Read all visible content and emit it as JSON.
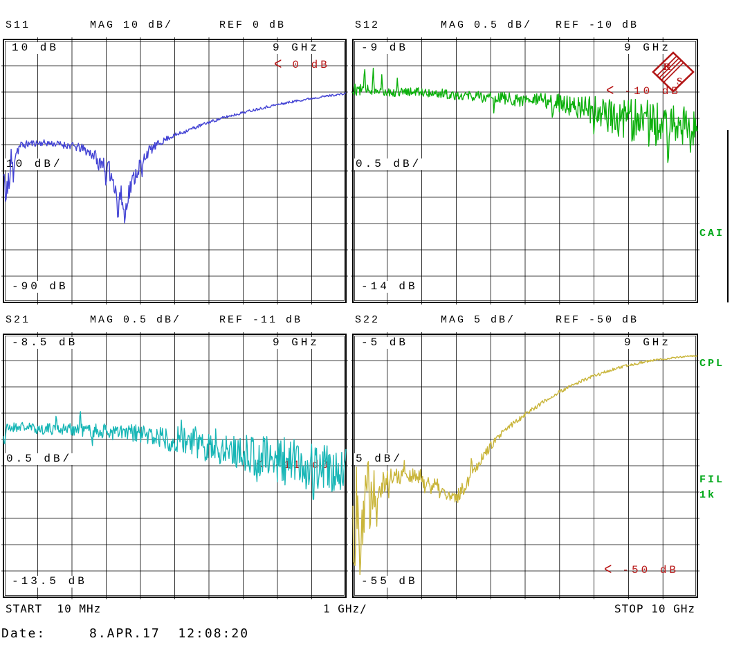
{
  "panels": [
    {
      "id": "s11",
      "name": "S11",
      "mag_label": "MAG 10 dB/",
      "ref_label": "REF 0 dB",
      "top_left_label": "10 dB",
      "top_right_label": "9 GHz",
      "mid_left_label": "10 dB/",
      "bottom_left_label": "-90 dB",
      "ref_marker": {
        "arrow": "<",
        "text": "0 dB"
      }
    },
    {
      "id": "s12",
      "name": "S12",
      "mag_label": "MAG 0.5 dB/",
      "ref_label": "REF -10 dB",
      "top_left_label": "-9 dB",
      "top_right_label": "9 GHz",
      "mid_left_label": "0.5 dB/",
      "bottom_left_label": "-14 dB",
      "ref_marker": {
        "arrow": "<",
        "text": "-10 dB"
      }
    },
    {
      "id": "s21",
      "name": "S21",
      "mag_label": "MAG 0.5 dB/",
      "ref_label": "REF -11 dB",
      "top_left_label": "-8.5 dB",
      "top_right_label": "9 GHz",
      "mid_left_label": "0.5 dB/",
      "bottom_left_label": "-13.5 dB",
      "ref_marker": {
        "arrow": "<",
        "text": "-11 dB"
      }
    },
    {
      "id": "s22",
      "name": "S22",
      "mag_label": "MAG 5 dB/",
      "ref_label": "REF -50 dB",
      "top_left_label": "-5 dB",
      "top_right_label": "9 GHz",
      "mid_left_label": "5 dB/",
      "bottom_left_label": "-55 dB",
      "ref_marker": {
        "arrow": "<",
        "text": "-50 dB"
      }
    }
  ],
  "chart_data": [
    {
      "type": "line",
      "title": "S11 magnitude",
      "x_unit": "GHz",
      "xlim": [
        0.01,
        10
      ],
      "x_per_div": 1,
      "ylim": [
        -90,
        10
      ],
      "db_per_div": 10,
      "ref_db": 0,
      "grid": "10x10",
      "series": [
        {
          "name": "S11 MAG",
          "color": "#4343d4",
          "seed": 11,
          "anchor_points": [
            [
              0.01,
              -42
            ],
            [
              0.05,
              -42
            ],
            [
              0.1,
              -41
            ],
            [
              0.2,
              -38
            ],
            [
              0.35,
              -33
            ],
            [
              0.5,
              -30.5
            ],
            [
              0.8,
              -29.5
            ],
            [
              1.2,
              -29.3
            ],
            [
              1.6,
              -29.8
            ],
            [
              2.0,
              -30.5
            ],
            [
              2.3,
              -31.5
            ],
            [
              2.6,
              -33.5
            ],
            [
              2.9,
              -36.5
            ],
            [
              3.1,
              -40
            ],
            [
              3.3,
              -46
            ],
            [
              3.5,
              -52
            ],
            [
              3.62,
              -50
            ],
            [
              3.8,
              -43
            ],
            [
              4.0,
              -37.5
            ],
            [
              4.2,
              -33
            ],
            [
              4.5,
              -30
            ],
            [
              4.8,
              -27.5
            ],
            [
              5.2,
              -25.5
            ],
            [
              5.6,
              -23.5
            ],
            [
              6.0,
              -21.5
            ],
            [
              6.5,
              -19.5
            ],
            [
              7.0,
              -17.8
            ],
            [
              7.5,
              -16.2
            ],
            [
              8.0,
              -14.8
            ],
            [
              8.5,
              -13.5
            ],
            [
              9.0,
              -12.4
            ],
            [
              9.5,
              -11.4
            ],
            [
              10.0,
              -10.6
            ]
          ],
          "noise_db": [
            [
              0.01,
              12
            ],
            [
              0.1,
              11
            ],
            [
              0.25,
              7
            ],
            [
              0.4,
              3
            ],
            [
              0.6,
              1.5
            ],
            [
              1.0,
              1.2
            ],
            [
              1.5,
              1.2
            ],
            [
              2.0,
              1.5
            ],
            [
              2.5,
              2
            ],
            [
              2.9,
              3
            ],
            [
              3.2,
              4
            ],
            [
              3.5,
              5
            ],
            [
              3.7,
              4
            ],
            [
              4.0,
              3
            ],
            [
              4.3,
              2
            ],
            [
              4.6,
              1.2
            ],
            [
              5.0,
              0.8
            ],
            [
              6.0,
              0.6
            ],
            [
              7.0,
              0.5
            ],
            [
              8.0,
              0.5
            ],
            [
              9.0,
              0.4
            ],
            [
              10.0,
              0.4
            ]
          ],
          "spikes": [
            [
              0.08,
              -13,
              0.04
            ],
            [
              0.18,
              -10,
              0.035
            ],
            [
              0.3,
              -11,
              0.03
            ],
            [
              2.78,
              -6,
              0.03
            ],
            [
              3.0,
              -9,
              0.035
            ],
            [
              3.35,
              -13,
              0.045
            ],
            [
              3.55,
              -10,
              0.04
            ],
            [
              4.05,
              -7,
              0.03
            ]
          ]
        }
      ]
    },
    {
      "type": "line",
      "title": "S12 magnitude",
      "x_unit": "GHz",
      "xlim": [
        0.01,
        10
      ],
      "x_per_div": 1,
      "ylim": [
        -14,
        -9
      ],
      "db_per_div": 0.5,
      "ref_db": -10,
      "grid": "10x10",
      "series": [
        {
          "name": "S12 MAG",
          "color": "#0cb00c",
          "seed": 12,
          "anchor_points": [
            [
              0.01,
              -9.95
            ],
            [
              0.5,
              -9.95
            ],
            [
              1.0,
              -10.0
            ],
            [
              2.0,
              -10.0
            ],
            [
              3.0,
              -10.05
            ],
            [
              4.0,
              -10.1
            ],
            [
              5.0,
              -10.15
            ],
            [
              6.0,
              -10.2
            ],
            [
              7.0,
              -10.35
            ],
            [
              7.8,
              -10.5
            ],
            [
              8.5,
              -10.6
            ],
            [
              9.2,
              -10.6
            ],
            [
              10.0,
              -10.7
            ]
          ],
          "noise_db": [
            [
              0.01,
              0.12
            ],
            [
              0.5,
              0.1
            ],
            [
              1.5,
              0.08
            ],
            [
              3.0,
              0.1
            ],
            [
              4.5,
              0.12
            ],
            [
              5.5,
              0.15
            ],
            [
              6.5,
              0.22
            ],
            [
              7.2,
              0.3
            ],
            [
              7.8,
              0.38
            ],
            [
              8.3,
              0.45
            ],
            [
              9.0,
              0.42
            ],
            [
              9.5,
              0.38
            ],
            [
              10.0,
              0.35
            ]
          ],
          "spikes": [
            [
              0.35,
              0.5,
              0.03
            ],
            [
              0.6,
              0.45,
              0.03
            ],
            [
              0.85,
              0.35,
              0.025
            ],
            [
              1.3,
              0.3,
              0.025
            ],
            [
              4.1,
              -0.35,
              0.025
            ],
            [
              5.8,
              -0.4,
              0.03
            ],
            [
              7.0,
              -0.5,
              0.03
            ],
            [
              8.55,
              0.45,
              0.03
            ],
            [
              9.15,
              -0.9,
              0.045
            ],
            [
              9.8,
              -0.55,
              0.03
            ]
          ]
        }
      ]
    },
    {
      "type": "line",
      "title": "S21 magnitude",
      "x_unit": "GHz",
      "xlim": [
        0.01,
        10
      ],
      "x_per_div": 1,
      "ylim": [
        -13.5,
        -8.5
      ],
      "db_per_div": 0.5,
      "ref_db": -11,
      "grid": "10x10",
      "series": [
        {
          "name": "S21 MAG",
          "color": "#18b6b6",
          "seed": 21,
          "anchor_points": [
            [
              0.01,
              -10.3
            ],
            [
              0.5,
              -10.25
            ],
            [
              1.0,
              -10.3
            ],
            [
              2.0,
              -10.3
            ],
            [
              3.0,
              -10.35
            ],
            [
              4.0,
              -10.4
            ],
            [
              5.0,
              -10.5
            ],
            [
              6.0,
              -10.6
            ],
            [
              7.0,
              -10.75
            ],
            [
              8.0,
              -10.9
            ],
            [
              9.0,
              -11.0
            ],
            [
              10.0,
              -11.1
            ]
          ],
          "noise_db": [
            [
              0.01,
              0.1
            ],
            [
              1.0,
              0.1
            ],
            [
              2.0,
              0.12
            ],
            [
              3.0,
              0.15
            ],
            [
              4.0,
              0.2
            ],
            [
              5.0,
              0.25
            ],
            [
              5.5,
              0.3
            ],
            [
              6.5,
              0.35
            ],
            [
              7.5,
              0.42
            ],
            [
              8.5,
              0.48
            ],
            [
              9.3,
              0.5
            ],
            [
              10.0,
              0.45
            ]
          ],
          "spikes": [
            [
              0.04,
              -0.35,
              0.05
            ],
            [
              1.55,
              0.35,
              0.025
            ],
            [
              2.25,
              0.45,
              0.03
            ],
            [
              2.6,
              -0.35,
              0.025
            ],
            [
              5.2,
              0.4,
              0.03
            ],
            [
              7.4,
              -0.6,
              0.03
            ],
            [
              8.6,
              0.5,
              0.03
            ],
            [
              9.05,
              -0.85,
              0.04
            ],
            [
              9.6,
              -0.6,
              0.03
            ]
          ]
        }
      ]
    },
    {
      "type": "line",
      "title": "S22 magnitude",
      "x_unit": "GHz",
      "xlim": [
        0.01,
        10
      ],
      "x_per_div": 1,
      "ylim": [
        -55,
        -5
      ],
      "db_per_div": 5,
      "ref_db": -50,
      "grid": "10x10",
      "series": [
        {
          "name": "S22 MAG",
          "color": "#c9b53a",
          "seed": 22,
          "anchor_points": [
            [
              0.01,
              -41
            ],
            [
              0.1,
              -41
            ],
            [
              0.3,
              -38
            ],
            [
              0.5,
              -35
            ],
            [
              0.8,
              -33
            ],
            [
              1.2,
              -32
            ],
            [
              1.6,
              -31.8
            ],
            [
              2.0,
              -32.5
            ],
            [
              2.4,
              -34
            ],
            [
              2.7,
              -35.5
            ],
            [
              2.95,
              -36.5
            ],
            [
              3.2,
              -34.5
            ],
            [
              3.5,
              -31
            ],
            [
              3.8,
              -28
            ],
            [
              4.1,
              -25.5
            ],
            [
              4.5,
              -22.8
            ],
            [
              5.0,
              -20.2
            ],
            [
              5.5,
              -18
            ],
            [
              6.0,
              -16
            ],
            [
              6.5,
              -14.3
            ],
            [
              7.0,
              -12.9
            ],
            [
              7.5,
              -11.8
            ],
            [
              8.0,
              -10.9
            ],
            [
              8.5,
              -10.2
            ],
            [
              9.0,
              -9.7
            ],
            [
              9.5,
              -9.3
            ],
            [
              10.0,
              -9.1
            ]
          ],
          "noise_db": [
            [
              0.01,
              14
            ],
            [
              0.15,
              13
            ],
            [
              0.3,
              10
            ],
            [
              0.5,
              7
            ],
            [
              0.7,
              4
            ],
            [
              0.9,
              2.5
            ],
            [
              1.2,
              1.8
            ],
            [
              1.6,
              1.5
            ],
            [
              2.0,
              1.8
            ],
            [
              2.5,
              1.8
            ],
            [
              3.0,
              1.5
            ],
            [
              3.5,
              1.2
            ],
            [
              4.0,
              0.8
            ],
            [
              4.5,
              0.6
            ],
            [
              5.0,
              0.5
            ],
            [
              5.5,
              0.4
            ],
            [
              6.0,
              0.35
            ],
            [
              7.0,
              0.3
            ],
            [
              8.0,
              0.25
            ],
            [
              9.0,
              0.2
            ],
            [
              10.0,
              0.15
            ]
          ],
          "spikes": [
            [
              0.22,
              -13,
              0.05
            ],
            [
              0.45,
              9,
              0.035
            ],
            [
              0.7,
              -9,
              0.035
            ],
            [
              1.05,
              -4,
              0.03
            ],
            [
              1.5,
              3,
              0.025
            ],
            [
              2.1,
              -3,
              0.025
            ],
            [
              3.45,
              4,
              0.03
            ]
          ]
        }
      ]
    }
  ],
  "x_axis": {
    "start_label": "START  10 MHz",
    "per_div_label": "1 GHz/",
    "stop_label": "STOP 10 GHz"
  },
  "status_labels": {
    "cal_interpolated": "CAI",
    "coupled_channels": "CPL",
    "if_filter": "FIL",
    "if_filter_value": "1k",
    "color": "#00a818"
  },
  "footer": {
    "date_label": "Date:",
    "date_value": "8.APR.17  12:08:20"
  },
  "logo": {
    "letter_top": "R",
    "letter_bottom": "S",
    "color": "#b21616"
  },
  "colors": {
    "background": "#ffffff",
    "grid": "#000000",
    "ref_marker": "#b81818",
    "trace_s11": "#4343d4",
    "trace_s12": "#0cb00c",
    "trace_s21": "#18b6b6",
    "trace_s22": "#c9b53a"
  }
}
